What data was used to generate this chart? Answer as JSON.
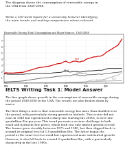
{
  "title_prompt_line1": "The diagram shows the consumption of renewable energy in",
  "title_prompt_line2": "the USA from 1949-2008.",
  "subtitle_prompt_line1": "Write a 150-word report for a university lecturer identifying",
  "subtitle_prompt_line2": "the main trends and making comparisons where relevant.",
  "chart_title": "Renewable Energy Total Consumption and Major Sources, 1949-2008",
  "section_heading": "IELTS Writing Task 1: Model Answer",
  "body_para1_line1": "The line graph shows growth in the consumption of renewable energy during",
  "body_para1_line2": "the period 1949-2008 in the USA. The results are also broken down by",
  "body_para1_line3": "source.",
  "body_para2_line1": "The first thing to note is that renewable energy has more than doubled over",
  "body_para2_line2": "the period, with particularly strong growth in biofuels. This sector did not",
  "body_para2_line3": "exist in 1949 but experienced a sharp rise starting the 2000s, to over one",
  "body_para2_line4": "quadrillion Btu per year. This trend presents a serious challenge to both",
  "body_para2_line5": "wood and hydroelectric power, which both saw only limited growth overall.",
  "body_para2_line6": "The former grew steadily between 1975 and 1980, but then slipped back to",
  "body_para2_line7": "around its original level of 1.8 quadrillion Btu. The latter began the",
  "body_para2_line8": "period at the same level as wood but experienced more substantial growth.",
  "body_para2_line9": "However, it also fell back to around 2 quadrillion Btu, with a particularly",
  "body_para2_line10": "sharp drop in the late 1980s.",
  "background_color": "#ffffff",
  "text_color": "#1a1a1a",
  "chart_bg": "#ffffff",
  "line_total_color": "#cc1111",
  "line_wood_color": "#222222",
  "line_hydro_color": "#666666",
  "line_geo_color": "#aaaaaa",
  "line_other_color": "#999999",
  "years": [
    1949,
    1950,
    1951,
    1952,
    1953,
    1954,
    1955,
    1956,
    1957,
    1958,
    1959,
    1960,
    1961,
    1962,
    1963,
    1964,
    1965,
    1966,
    1967,
    1968,
    1969,
    1970,
    1971,
    1972,
    1973,
    1974,
    1975,
    1976,
    1977,
    1978,
    1979,
    1980,
    1981,
    1982,
    1983,
    1984,
    1985,
    1986,
    1987,
    1988,
    1989,
    1990,
    1991,
    1992,
    1993,
    1994,
    1995,
    1996,
    1997,
    1998,
    1999,
    2000,
    2001,
    2002,
    2003,
    2004,
    2005,
    2006,
    2007,
    2008
  ],
  "total": [
    1.6,
    1.7,
    1.65,
    1.65,
    1.65,
    1.65,
    1.7,
    1.7,
    1.75,
    1.75,
    1.8,
    1.95,
    2.0,
    2.1,
    2.2,
    2.3,
    2.4,
    2.5,
    2.55,
    2.6,
    2.65,
    2.7,
    2.75,
    2.8,
    2.9,
    3.0,
    3.1,
    3.2,
    3.2,
    3.3,
    3.5,
    3.6,
    3.4,
    3.3,
    3.5,
    3.6,
    3.6,
    3.5,
    3.45,
    3.6,
    3.6,
    3.9,
    4.0,
    4.1,
    4.2,
    4.3,
    4.3,
    4.4,
    4.4,
    4.5,
    4.7,
    5.0,
    5.2,
    5.4,
    5.6,
    5.8,
    6.0,
    6.2,
    6.7,
    7.2
  ],
  "wood": [
    1.5,
    1.5,
    1.45,
    1.45,
    1.45,
    1.45,
    1.45,
    1.45,
    1.45,
    1.45,
    1.45,
    1.5,
    1.5,
    1.5,
    1.55,
    1.6,
    1.6,
    1.6,
    1.6,
    1.6,
    1.6,
    1.6,
    1.6,
    1.6,
    1.65,
    1.7,
    1.7,
    1.75,
    1.75,
    1.8,
    1.9,
    2.0,
    1.9,
    1.8,
    1.85,
    1.9,
    1.9,
    1.85,
    1.8,
    1.85,
    1.85,
    1.95,
    2.0,
    2.0,
    2.0,
    2.05,
    2.05,
    2.1,
    2.1,
    2.1,
    2.2,
    2.3,
    2.4,
    2.4,
    2.4,
    2.4,
    2.4,
    2.4,
    2.4,
    2.4
  ],
  "hydro": [
    0.18,
    0.2,
    0.22,
    0.23,
    0.26,
    0.27,
    0.28,
    0.28,
    0.32,
    0.34,
    0.38,
    0.43,
    0.48,
    0.53,
    0.58,
    0.63,
    0.68,
    0.73,
    0.77,
    0.82,
    0.84,
    0.87,
    0.9,
    0.93,
    0.97,
    1.02,
    1.07,
    1.12,
    1.12,
    1.17,
    1.22,
    1.27,
    1.22,
    1.17,
    1.32,
    1.37,
    1.37,
    1.32,
    1.22,
    1.27,
    1.17,
    1.32,
    1.37,
    1.37,
    1.37,
    1.42,
    1.42,
    1.47,
    1.47,
    1.42,
    1.52,
    1.57,
    1.57,
    1.62,
    1.67,
    1.72,
    1.72,
    1.77,
    1.82,
    1.87
  ],
  "geo": [
    0.0,
    0.0,
    0.0,
    0.0,
    0.0,
    0.0,
    0.0,
    0.0,
    0.0,
    0.0,
    0.0,
    0.0,
    0.0,
    0.0,
    0.0,
    0.0,
    0.01,
    0.02,
    0.03,
    0.03,
    0.03,
    0.04,
    0.04,
    0.04,
    0.04,
    0.04,
    0.05,
    0.06,
    0.07,
    0.08,
    0.09,
    0.11,
    0.12,
    0.13,
    0.14,
    0.15,
    0.16,
    0.17,
    0.18,
    0.19,
    0.2,
    0.22,
    0.24,
    0.25,
    0.26,
    0.27,
    0.28,
    0.29,
    0.3,
    0.31,
    0.32,
    0.33,
    0.34,
    0.35,
    0.36,
    0.37,
    0.38,
    0.39,
    0.4,
    0.42
  ],
  "other": [
    0.0,
    0.0,
    0.0,
    0.0,
    0.0,
    0.0,
    0.0,
    0.0,
    0.0,
    0.0,
    0.0,
    0.0,
    0.0,
    0.0,
    0.0,
    0.0,
    0.0,
    0.0,
    0.0,
    0.0,
    0.0,
    0.0,
    0.0,
    0.0,
    0.0,
    0.0,
    0.0,
    0.0,
    0.0,
    0.0,
    0.0,
    0.01,
    0.02,
    0.03,
    0.04,
    0.05,
    0.06,
    0.07,
    0.07,
    0.08,
    0.1,
    0.2,
    0.3,
    0.4,
    0.5,
    0.5,
    0.5,
    0.5,
    0.5,
    0.55,
    0.6,
    0.7,
    0.8,
    0.9,
    1.0,
    1.1,
    1.2,
    1.3,
    1.5,
    1.8
  ]
}
